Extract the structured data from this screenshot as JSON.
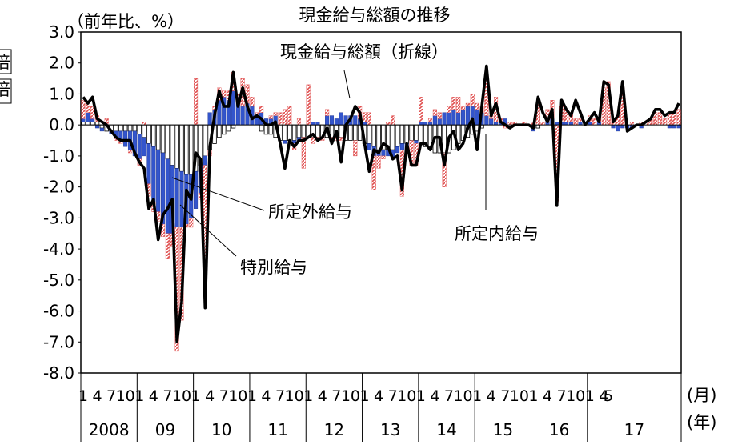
{
  "chart_data": {
    "type": "bar",
    "title": "現金給与総額の推移",
    "unit_label": "（前年比、%）",
    "ylim": [
      -8.0,
      3.0
    ],
    "y_ticks": [
      "3.0",
      "2.0",
      "1.0",
      "0.0",
      "-1.0",
      "-2.0",
      "-3.0",
      "-4.0",
      "-5.0",
      "-6.0",
      "-7.0",
      "-8.0"
    ],
    "left_edge_fragments": [
      "倍",
      "倍"
    ],
    "x_month_ticks": [
      "1",
      "4",
      "7",
      "10"
    ],
    "x_last_ticks": [
      "1",
      "4",
      "5"
    ],
    "x_month_unit": "(月)",
    "x_year_unit": "(年)",
    "years": [
      "2008",
      "09",
      "10",
      "11",
      "12",
      "13",
      "14",
      "15",
      "16",
      "17"
    ],
    "annotations": {
      "total_line": "現金給与総額（折線）",
      "overtime": "所定外給与",
      "bonus": "特別給与",
      "scheduled": "所定内給与"
    },
    "colors": {
      "overtime": "#3355cc",
      "bonus": "#e05050",
      "scheduled": "#ffffff",
      "line": "#000000"
    },
    "series": [
      {
        "key": "overtime",
        "values": [
          0.1,
          0.3,
          0.1,
          -0.1,
          -0.1,
          0.0,
          -0.1,
          -0.2,
          -0.3,
          -0.5,
          -0.6,
          -0.8,
          -0.8,
          -0.6,
          -1.3,
          -1.8,
          -2.0,
          -2.3,
          -2.4,
          -2.2,
          -1.9,
          -1.8,
          -1.6,
          -1.4,
          -1.2,
          -0.9,
          -0.3,
          0.4,
          0.5,
          0.8,
          0.9,
          0.8,
          1.1,
          0.9,
          0.6,
          0.7,
          0.6,
          0.3,
          0.4,
          0.2,
          0.2,
          0.3,
          0.0,
          -0.1,
          0.0,
          -0.1,
          -0.1,
          0.0,
          0.0,
          0.1,
          0.1,
          0.0,
          0.3,
          0.3,
          0.2,
          0.4,
          0.3,
          0.3,
          0.3,
          0.2,
          0.1,
          -0.2,
          -0.3,
          -0.2,
          -0.2,
          -0.2,
          -0.3,
          -0.2,
          -0.2,
          -0.2,
          0.0,
          -0.1,
          0.1,
          0.1,
          0.1,
          0.3,
          0.2,
          0.4,
          0.4,
          0.5,
          0.4,
          0.5,
          0.6,
          0.6,
          0.5,
          0.4,
          0.3,
          0.2,
          0.1,
          0.1,
          0.2,
          0.0,
          0.0,
          0.0,
          0.0,
          0.0,
          -0.1,
          0.0,
          0.0,
          0.1,
          0.2,
          0.1,
          0.1,
          0.1,
          0.1,
          0.0,
          0.1,
          0.0,
          0.1,
          0.0,
          0.1,
          0.0,
          0.0,
          -0.1,
          -0.2,
          -0.1,
          -0.1,
          -0.1,
          0.0,
          -0.1,
          0.0,
          0.0,
          0.0,
          0.0,
          0.0,
          -0.1,
          -0.1,
          -0.1
        ]
      },
      {
        "key": "bonus",
        "values": [
          0.6,
          0.3,
          0.4,
          0.2,
          0.0,
          0.2,
          0.0,
          -0.1,
          -0.1,
          0.0,
          -0.1,
          0.0,
          -0.2,
          0.1,
          -0.4,
          -0.3,
          -0.3,
          -0.4,
          -0.8,
          -0.4,
          -4.0,
          -3.0,
          -0.1,
          -0.3,
          1.5,
          -0.2,
          -4.0,
          -0.2,
          0.1,
          0.4,
          0.2,
          0.3,
          0.6,
          0.1,
          0.9,
          0.6,
          0.3,
          0.1,
          0.2,
          0.0,
          0.1,
          0.1,
          0.4,
          0.5,
          0.6,
          -0.2,
          0.2,
          -1.0,
          1.3,
          -0.2,
          -0.1,
          -0.1,
          0.2,
          -0.1,
          -0.1,
          -0.1,
          0.0,
          0.0,
          -0.5,
          0.4,
          0.3,
          0.4,
          -1.1,
          -0.4,
          -0.1,
          0.1,
          0.3,
          0.0,
          -1.5,
          0.0,
          -0.8,
          -0.7,
          0.8,
          0.0,
          0.1,
          0.2,
          0.2,
          -1.1,
          0.2,
          0.4,
          0.5,
          0.1,
          0.1,
          0.4,
          0.2,
          0.2,
          1.3,
          0.1,
          0.8,
          0.1,
          -0.1,
          0.1,
          0.1,
          0.0,
          0.1,
          0.0,
          0.1,
          0.7,
          0.1,
          0.4,
          0.6,
          -2.5,
          0.5,
          0.4,
          0.3,
          0.2,
          0.1,
          0.0,
          0.2,
          0.2,
          0.1,
          1.2,
          1.4,
          0.2,
          0.3,
          1.2,
          0.0,
          0.1,
          0.0,
          0.1,
          0.1,
          0.2,
          0.4,
          0.4,
          0.2,
          0.4,
          0.4,
          0.5
        ]
      },
      {
        "key": "scheduled",
        "values": [
          0.1,
          0.1,
          0.1,
          0.1,
          -0.1,
          -0.2,
          -0.2,
          -0.2,
          -0.2,
          -0.2,
          -0.2,
          -0.2,
          -0.3,
          -0.4,
          -0.6,
          -0.7,
          -0.8,
          -0.9,
          -1.1,
          -1.3,
          -1.4,
          -1.5,
          -1.6,
          -1.6,
          -1.5,
          -1.3,
          -1.0,
          -0.8,
          -0.6,
          -0.4,
          -0.3,
          -0.2,
          -0.1,
          0.0,
          0.0,
          0.0,
          0.0,
          0.0,
          -0.2,
          -0.3,
          -0.3,
          -0.4,
          -0.5,
          -0.5,
          -0.5,
          -0.5,
          -0.4,
          -0.4,
          -0.4,
          -0.4,
          -0.4,
          -0.4,
          -0.4,
          -0.4,
          -0.4,
          -0.4,
          -0.5,
          -0.5,
          -0.5,
          -0.5,
          -0.6,
          -0.6,
          -0.7,
          -0.8,
          -0.8,
          -0.8,
          -0.8,
          -0.7,
          -0.6,
          -0.6,
          -0.5,
          -0.5,
          -0.6,
          -0.7,
          -0.8,
          -0.9,
          -0.9,
          -0.9,
          -0.9,
          -0.8,
          -0.6,
          -0.5,
          -0.4,
          -0.3,
          -0.2,
          -0.1,
          0.0,
          0.0,
          0.0,
          0.0,
          0.0,
          0.0,
          0.0,
          0.0,
          0.0,
          0.0,
          -0.1,
          -0.1,
          0.0,
          0.0,
          0.0,
          0.0,
          0.0,
          0.0,
          0.0,
          0.0,
          0.0,
          0.0,
          0.0,
          0.0,
          0.0,
          0.0,
          0.0,
          0.0,
          0.0,
          0.0,
          0.0,
          0.0,
          0.0,
          0.0,
          0.0,
          0.0,
          0.0,
          0.0,
          0.0,
          0.0,
          0.0,
          0.0,
          0.0
        ]
      },
      {
        "key": "total",
        "values": [
          0.9,
          0.7,
          0.9,
          0.2,
          0.1,
          0.0,
          -0.2,
          -0.4,
          -0.5,
          -0.5,
          -0.5,
          -0.9,
          -1.2,
          -1.4,
          -2.7,
          -2.4,
          -3.7,
          -2.9,
          -2.7,
          -2.4,
          -7.0,
          -5.7,
          -2.1,
          -2.4,
          -0.9,
          -1.1,
          -5.9,
          -0.7,
          0.3,
          1.1,
          0.6,
          0.6,
          1.7,
          0.6,
          1.2,
          0.6,
          0.2,
          0.3,
          0.2,
          0.0,
          0.0,
          0.1,
          -0.6,
          -1.4,
          -0.5,
          -0.7,
          -0.5,
          -0.5,
          -0.4,
          -0.3,
          -0.5,
          -0.4,
          -0.1,
          -0.6,
          -0.2,
          -1.2,
          0.0,
          0.2,
          0.6,
          0.4,
          -0.6,
          -1.5,
          -0.8,
          -0.9,
          -0.6,
          -0.7,
          -1.1,
          -1.0,
          -2.1,
          -0.6,
          -1.3,
          -1.3,
          -0.6,
          -0.6,
          -0.8,
          -0.4,
          -0.4,
          -1.3,
          -0.4,
          -0.2,
          -0.8,
          -0.6,
          -0.1,
          0.2,
          -0.8,
          0.6,
          1.9,
          0.3,
          0.7,
          0.1,
          0.0,
          -0.1,
          0.0,
          0.0,
          0.0,
          0.0,
          -0.1,
          0.9,
          0.4,
          0.1,
          0.5,
          -2.6,
          0.8,
          0.5,
          0.3,
          0.8,
          0.4,
          0.0,
          0.2,
          0.4,
          0.1,
          1.4,
          1.3,
          0.1,
          0.3,
          1.4,
          -0.2,
          -0.1,
          0.0,
          0.0,
          0.1,
          0.2,
          0.5,
          0.5,
          0.3,
          0.4,
          0.4,
          0.7
        ]
      }
    ]
  }
}
